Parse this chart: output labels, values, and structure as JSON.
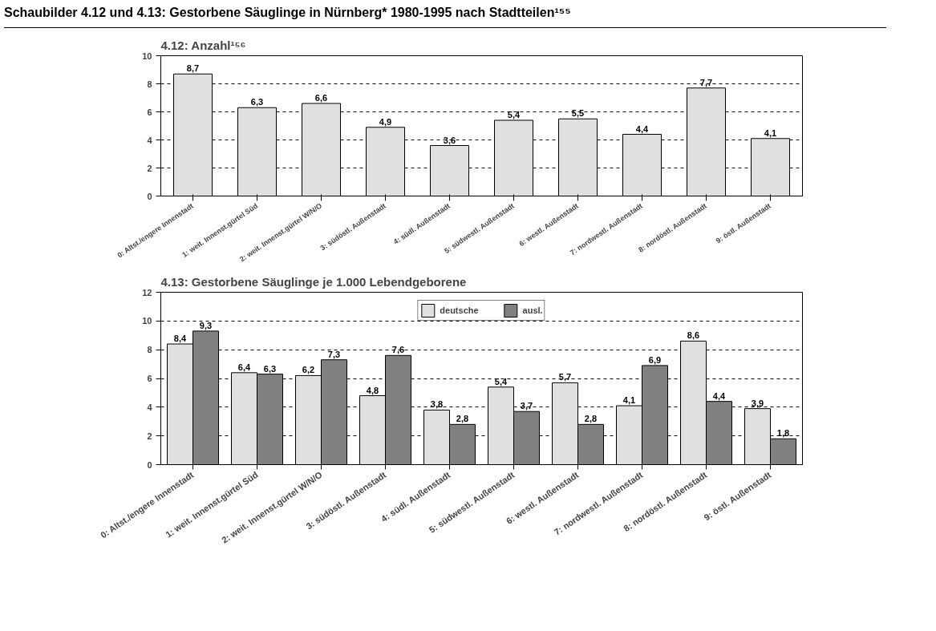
{
  "chart_data": [
    {
      "type": "bar",
      "title": "Schaubilder 4.12 und 4.13: Gestorbene Säuglinge in Nürnberg* 1980-1995 nach Stadtteilen¹⁵⁵",
      "subtitle": "4.12: Anzahl¹⁵⁶",
      "categories": [
        "0: Altst./engere Innenstadt",
        "1: weit. Innenst.gürtel Süd",
        "2: weit. Innenst.gürtel W/N/O",
        "3: südöstl. Außenstadt",
        "4: südl. Außenstadt",
        "5: südwestl. Außenstadt",
        "6: westl. Außenstadt",
        "7: nordwestl. Außenstadt",
        "8: nordöstl. Außenstadt",
        "9: östl. Außenstadt"
      ],
      "values": [
        8.7,
        6.3,
        6.6,
        4.9,
        3.6,
        5.4,
        5.5,
        4.4,
        7.7,
        4.1
      ],
      "value_labels": [
        "8,7",
        "6,3",
        "6,6",
        "4,9",
        "3,6",
        "5,4",
        "5,5",
        "4,4",
        "7,7",
        "4,1"
      ],
      "color": "#e0e0e0",
      "ylim": [
        0,
        10
      ],
      "yticks": [
        0,
        2,
        4,
        6,
        8,
        10
      ],
      "grid": "y",
      "line_style": "dashed"
    },
    {
      "type": "bar",
      "subtitle": "4.13: Gestorbene Säuglinge je 1.000 Lebendgeborene",
      "categories": [
        "0: Altst./engere Innenstadt",
        "1: weit. Innenst.gürtel Süd",
        "2: weit. Innenst.gürtel W/N/O",
        "3: südöstl. Außenstadt",
        "4: südl. Außenstadt",
        "5: südwestl. Außenstadt",
        "6: westl. Außenstadt",
        "7: nordwestl. Außenstadt",
        "8: nordöstl. Außenstadt",
        "9: östl. Außenstadt"
      ],
      "series": [
        {
          "name": "deutsche",
          "color": "#e0e0e0",
          "values": [
            8.4,
            6.4,
            6.2,
            4.8,
            3.8,
            5.4,
            5.7,
            4.1,
            8.6,
            3.9
          ],
          "value_labels": [
            "8,4",
            "6,4",
            "6,2",
            "4,8",
            "3,8",
            "5,4",
            "5,7",
            "4,1",
            "8,6",
            "3,9"
          ]
        },
        {
          "name": "ausl.",
          "color": "#808080",
          "values": [
            9.3,
            6.3,
            7.3,
            7.6,
            2.8,
            3.7,
            2.8,
            6.9,
            4.4,
            1.8
          ],
          "value_labels": [
            "9,3",
            "6,3",
            "7,3",
            "7,6",
            "2,8",
            "3,7",
            "2,8",
            "6,9",
            "4,4",
            "1,8"
          ]
        }
      ],
      "ylim": [
        0,
        12
      ],
      "yticks": [
        0,
        2,
        4,
        6,
        8,
        10,
        12
      ],
      "grid": "y",
      "line_style": "dashed",
      "legend": "top"
    }
  ]
}
